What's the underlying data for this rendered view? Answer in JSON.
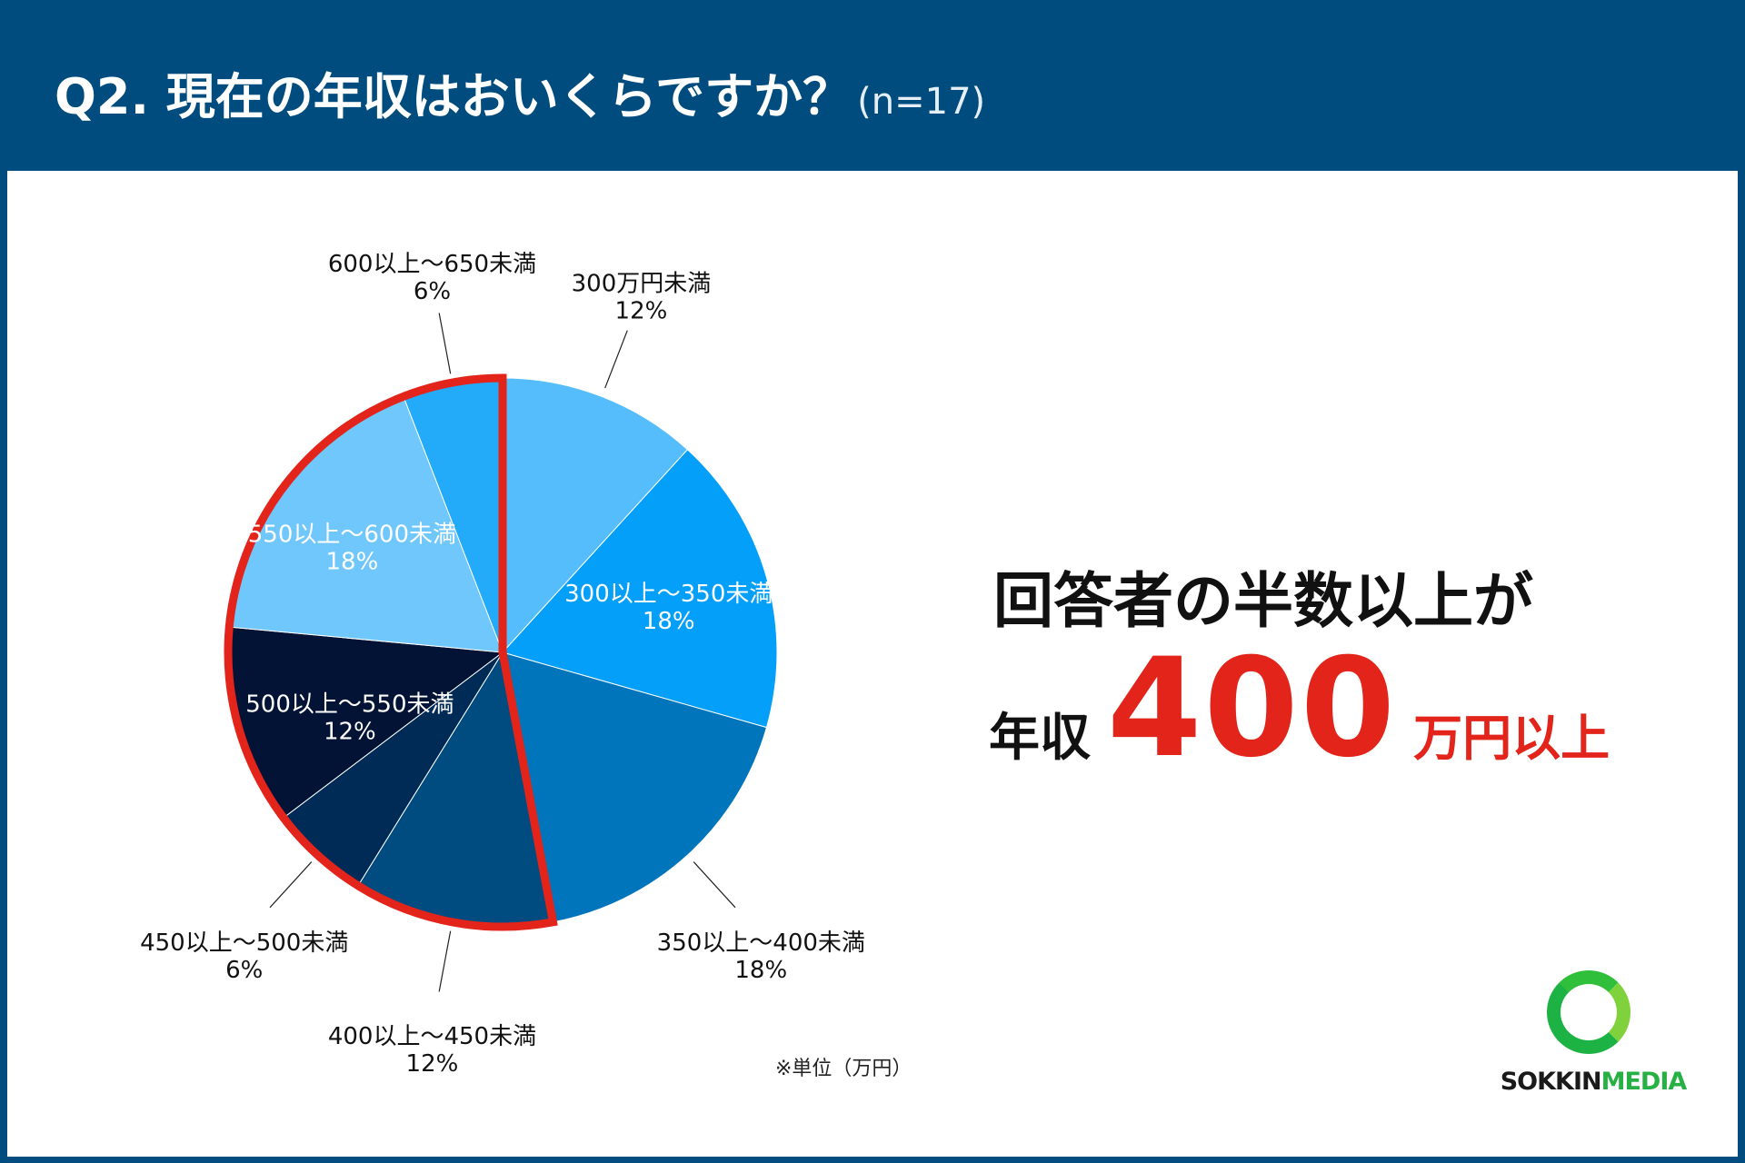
{
  "header": {
    "question": "Q2. 現在の年収はおいくらですか？",
    "sample": "(n=17)"
  },
  "chart_data": {
    "type": "pie",
    "title": "Q2. 現在の年収はおいくらですか？",
    "unit_note": "※単位（万円）",
    "highlight_note": "400万円以上 (outlined in red)",
    "slices": [
      {
        "label": "300万円未満",
        "percent_label": "12%",
        "value": 12,
        "color": "#55bdfb"
      },
      {
        "label": "300以上〜350未満",
        "percent_label": "18%",
        "value": 18,
        "color": "#039ff9"
      },
      {
        "label": "350以上〜400未満",
        "percent_label": "18%",
        "value": 18,
        "color": "#0075bb"
      },
      {
        "label": "400以上〜450未満",
        "percent_label": "12%",
        "value": 12,
        "color": "#004b7f"
      },
      {
        "label": "450以上〜500未満",
        "percent_label": "6%",
        "value": 6,
        "color": "#002b57"
      },
      {
        "label": "500以上〜550未満",
        "percent_label": "12%",
        "value": 12,
        "color": "#021336"
      },
      {
        "label": "550以上〜600未満",
        "percent_label": "18%",
        "value": 18,
        "color": "#6fc7fc"
      },
      {
        "label": "600以上〜650未満",
        "percent_label": "6%",
        "value": 6,
        "color": "#23abfa"
      }
    ],
    "highlight_from_index": 3,
    "highlight_color": "#e3241b"
  },
  "message": {
    "line1": "回答者の半数以上が",
    "prefix": "年収",
    "number": "400",
    "suffix": "万円以上"
  },
  "logo": {
    "part1": "SOKKIN",
    "part2": "MEDIA"
  }
}
